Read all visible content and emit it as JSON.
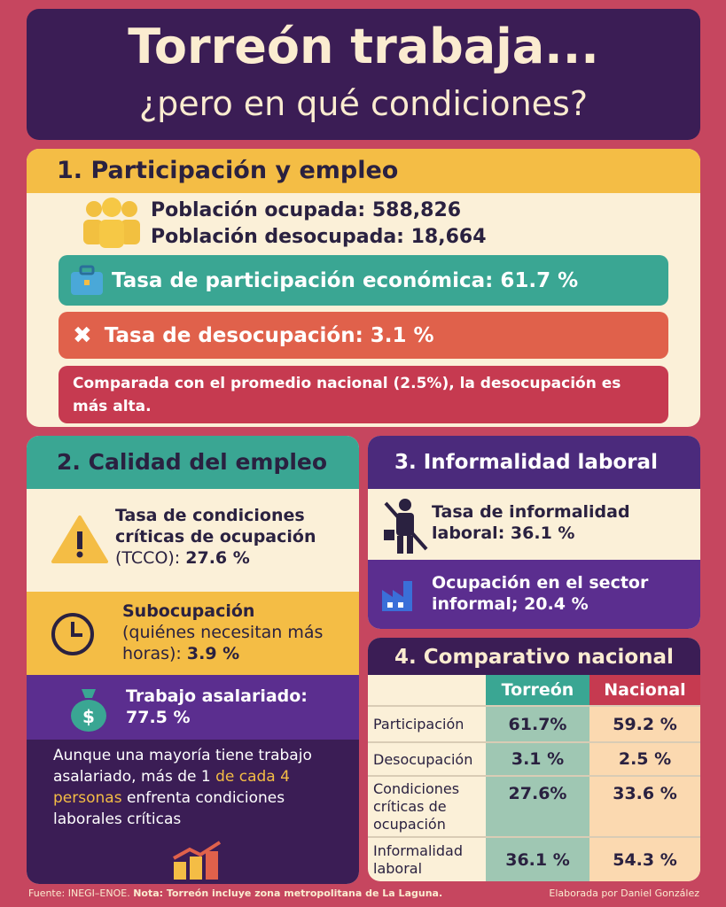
{
  "title": {
    "line1": "Torreón trabaja...",
    "line2": "¿pero en qué condiciones?"
  },
  "section1": {
    "heading": "1. Participación y empleo",
    "ocupada": "Población ocupada: 588,826",
    "desocupada": "Población desocupada: 18,664",
    "participacion": "Tasa de participación económica: 61.7 %",
    "desocupacion": "Tasa de desocupación: 3.1 %",
    "comparada": "Comparada con el promedio nacional (2.5%), la desocupación es más alta."
  },
  "section2": {
    "heading": "2. Calidad del empleo",
    "tcco_label": "Tasa de condiciones críticas de ocupación",
    "tcco_abbr": "(TCCO): ",
    "tcco_value": "27.6 %",
    "sub_label": "Subocupación",
    "sub_desc": "(quiénes necesitan más horas): ",
    "sub_value": "3.9 %",
    "asal_label": "Trabajo asalariado:",
    "asal_value": "77.5 %",
    "note_a": "Aunque una mayoría tiene trabajo asalariado, más de 1 ",
    "note_highlight": "de cada 4 personas",
    "note_b": " enfrenta condiciones laborales críticas"
  },
  "section3": {
    "heading": "3. Informalidad laboral",
    "informalidad": "Tasa de informalidad laboral: 36.1 %",
    "sector": "Ocupación en el sector informal; 20.4 %"
  },
  "section4": {
    "heading": "4. Comparativo nacional",
    "columns": [
      "Torreón",
      "Nacional"
    ],
    "rows": [
      {
        "label": "Participación",
        "torreon": "61.7%",
        "nacional": "59.2 %"
      },
      {
        "label": "Desocupación",
        "torreon": "3.1 %",
        "nacional": "2.5 %"
      },
      {
        "label": "Condiciones críticas de ocupación",
        "torreon": "27.6%",
        "nacional": "33.6 %"
      },
      {
        "label": "Informalidad laboral",
        "torreon": "36.1 %",
        "nacional": "54.3 %"
      }
    ]
  },
  "footer": {
    "source": "Fuente: INEGI–ENOE. ",
    "note": "Nota: Torreón incluye zona metropolitana de La Laguna.",
    "credit": "Elaborada por Daniel González"
  },
  "colors": {
    "background": "#c6465f",
    "purple": "#3b1d55",
    "teal": "#3aa693",
    "yellow": "#f4bd45",
    "orange": "#e0614b",
    "red": "#c63a50"
  }
}
